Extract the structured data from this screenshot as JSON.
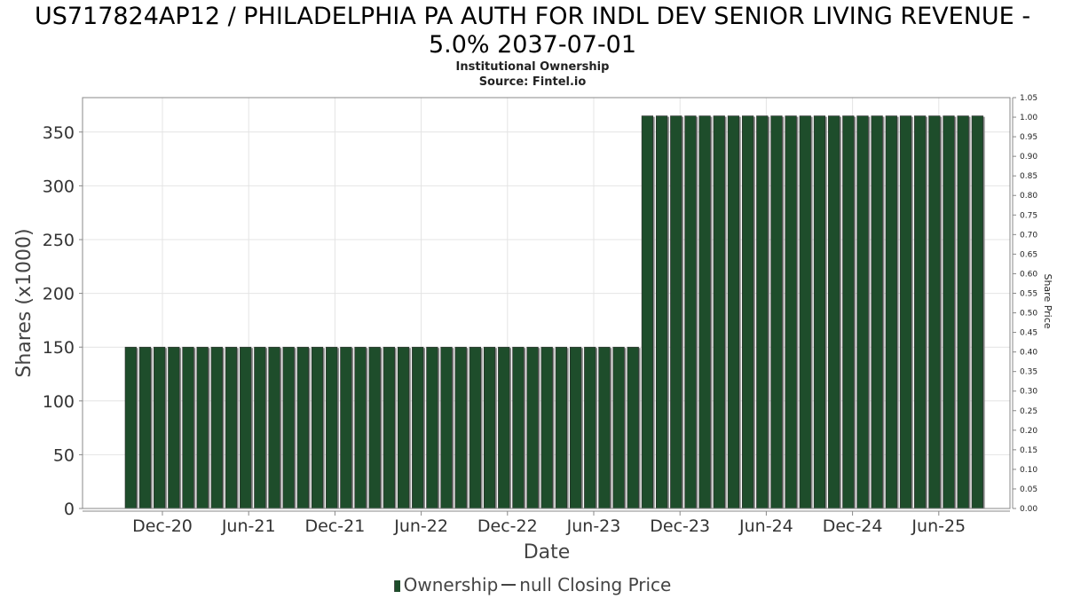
{
  "header": {
    "title_line1": "US717824AP12 / PHILADELPHIA PA AUTH FOR INDL DEV SENIOR LIVING REVENUE -",
    "title_line2": "5.0% 2037-07-01",
    "subtitle": "Institutional Ownership",
    "source": "Source: Fintel.io"
  },
  "legend": {
    "ownership_label": "Ownership",
    "price_label": "null Closing Price"
  },
  "colors": {
    "bar_fill": "#1e4d2b",
    "bar_shadow": "#8a8a8a",
    "grid": "#e4e4e4",
    "axis": "#888888"
  },
  "chart_data": {
    "type": "bar",
    "xlabel": "Date",
    "ylabel": "Shares (x1000)",
    "y2label": "Share Price",
    "ylim": [
      0,
      382
    ],
    "y2lim": [
      0,
      1.05
    ],
    "yticks": [
      0,
      50,
      100,
      150,
      200,
      250,
      300,
      350
    ],
    "y2ticks": [
      "0.00",
      "0.05",
      "0.10",
      "0.15",
      "0.20",
      "0.25",
      "0.30",
      "0.35",
      "0.40",
      "0.45",
      "0.50",
      "0.55",
      "0.60",
      "0.65",
      "0.70",
      "0.75",
      "0.80",
      "0.85",
      "0.90",
      "0.95",
      "1.00",
      "1.05"
    ],
    "xticks": [
      "Dec-20",
      "Jun-21",
      "Dec-21",
      "Jun-22",
      "Dec-22",
      "Jun-23",
      "Dec-23",
      "Jun-24",
      "Dec-24",
      "Jun-25"
    ],
    "grid": true,
    "legend_position": "bottom",
    "series": [
      {
        "name": "Ownership",
        "values": [
          150,
          150,
          150,
          150,
          150,
          150,
          150,
          150,
          150,
          150,
          150,
          150,
          150,
          150,
          150,
          150,
          150,
          150,
          150,
          150,
          150,
          150,
          150,
          150,
          150,
          150,
          150,
          150,
          150,
          150,
          150,
          150,
          150,
          150,
          150,
          150,
          365,
          365,
          365,
          365,
          365,
          365,
          365,
          365,
          365,
          365,
          365,
          365,
          365,
          365,
          365,
          365,
          365,
          365,
          365,
          365,
          365,
          365,
          365,
          365
        ]
      }
    ]
  }
}
